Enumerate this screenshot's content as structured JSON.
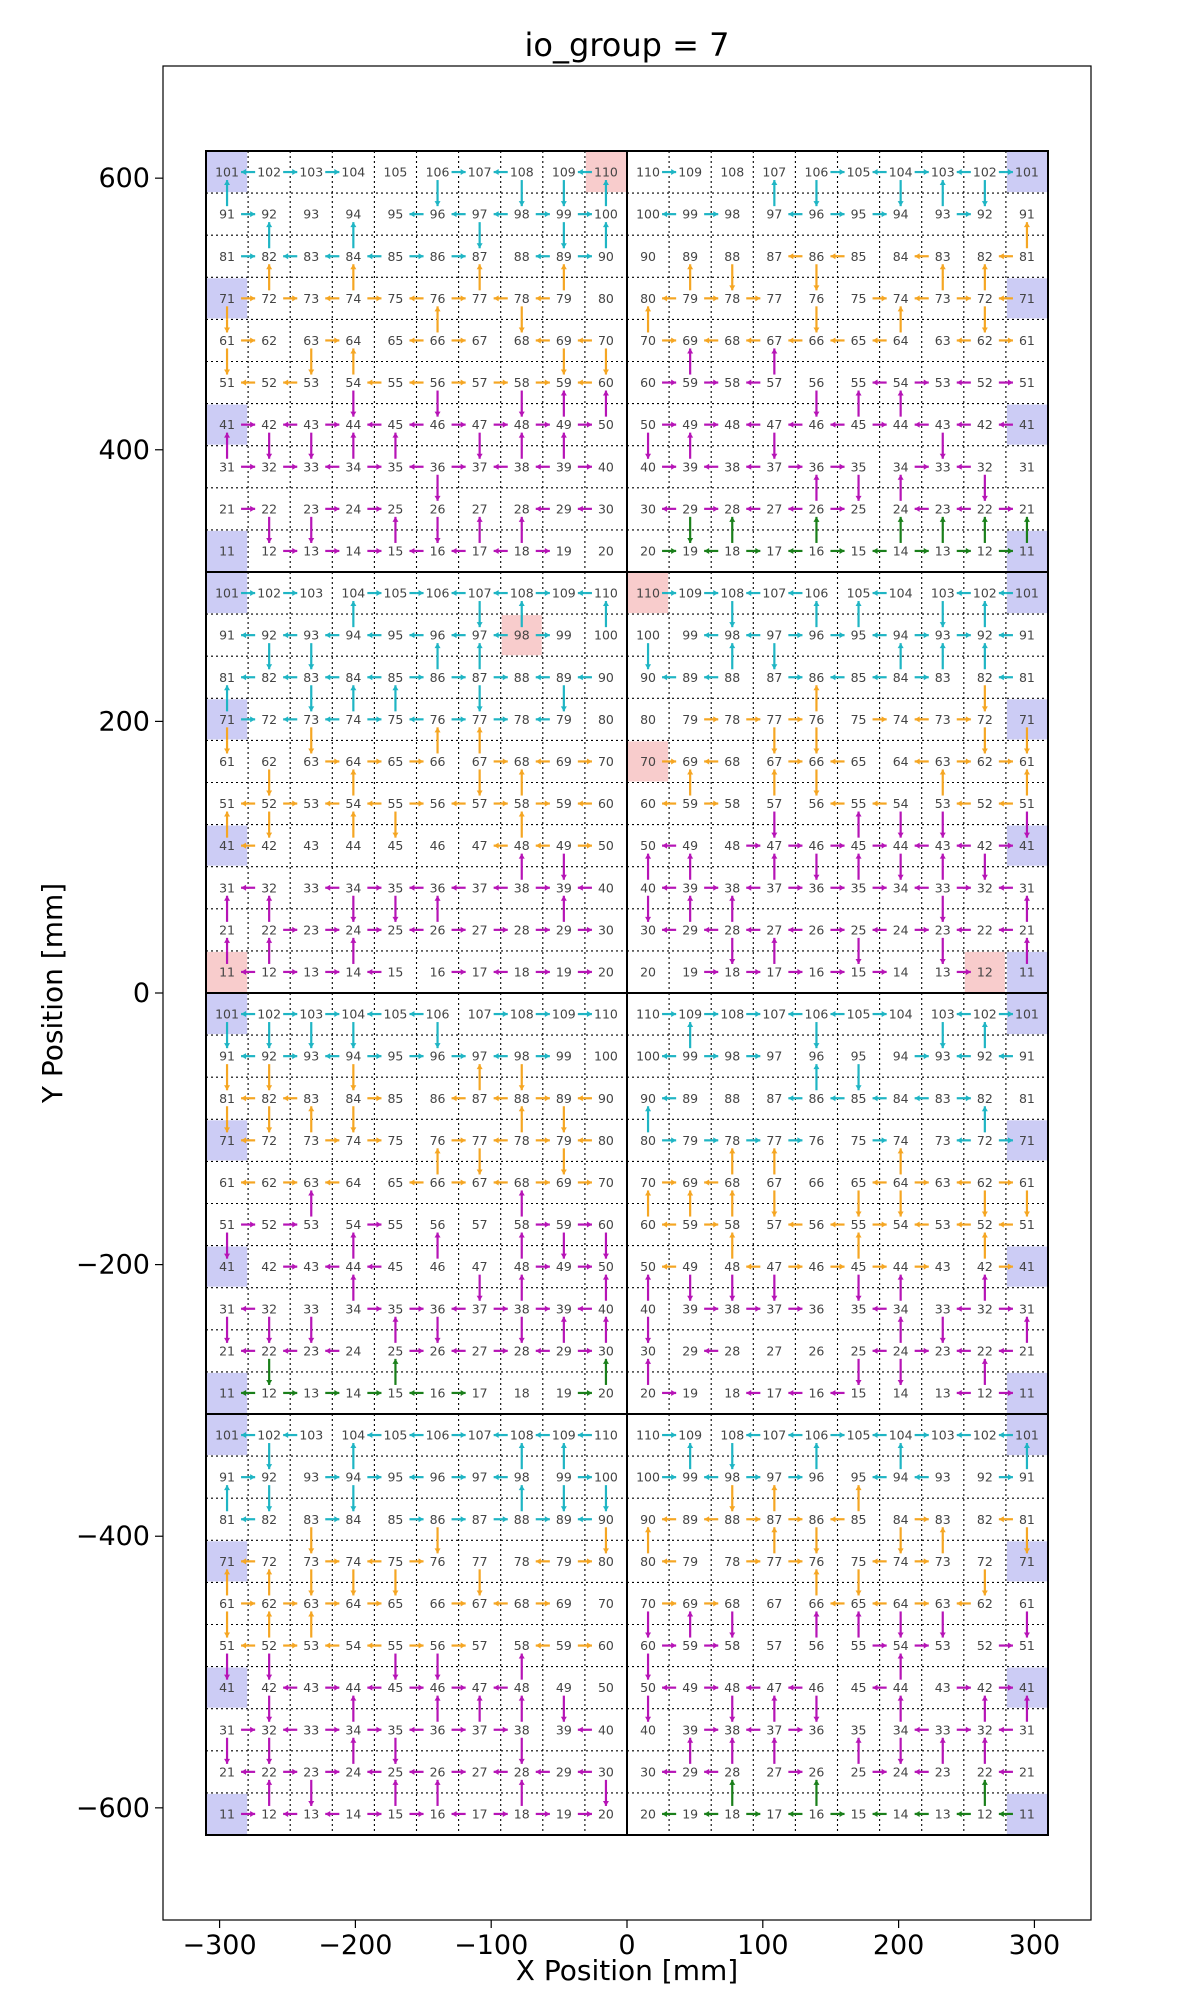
{
  "chart_data": {
    "type": "scatter",
    "title": "io_group = 7",
    "xlabel": "X Position [mm]",
    "ylabel": "Y Position [mm]",
    "xlim": [
      -340,
      340
    ],
    "ylim": [
      -690,
      690
    ],
    "xticks": [
      -300,
      -200,
      -100,
      0,
      100,
      200,
      300
    ],
    "xtick_labels": [
      "−300",
      "−200",
      "−100",
      "0",
      "100",
      "200",
      "300"
    ],
    "yticks": [
      -600,
      -400,
      -200,
      0,
      200,
      400,
      600
    ],
    "ytick_labels": [
      "−600",
      "−400",
      "−200",
      "0",
      "200",
      "400",
      "600"
    ],
    "tile_x_range": [
      -310,
      310
    ],
    "tile_y_range": [
      -620,
      620
    ],
    "grid": "dotted",
    "highlighted_chips": [
      {
        "tile": 1,
        "chip": 110
      },
      {
        "tile": 3,
        "chip": 98
      },
      {
        "tile": 3,
        "chip": 11
      },
      {
        "tile": 4,
        "chip": 12
      },
      {
        "tile": 4,
        "chip": 70
      },
      {
        "tile": 4,
        "chip": 110
      }
    ],
    "colors": {
      "root_chip": "#ccccf5",
      "highlight_chip": "#f8cccc",
      "arrow_green": "#1a7f1a",
      "arrow_cyan": "#1fb5c4",
      "arrow_orange": "#f5a623",
      "arrow_magenta": "#b614b6",
      "frame": "#000000",
      "label": "#444444"
    },
    "tiles": [
      {
        "id": 1,
        "x0": -310,
        "x1": 0,
        "y0": 310,
        "y1": 620,
        "layout": "left"
      },
      {
        "id": 2,
        "x0": 0,
        "x1": 310,
        "y0": 310,
        "y1": 620,
        "layout": "right"
      },
      {
        "id": 3,
        "x0": -310,
        "x1": 0,
        "y0": 0,
        "y1": 310,
        "layout": "left"
      },
      {
        "id": 4,
        "x0": 0,
        "x1": 310,
        "y0": 0,
        "y1": 310,
        "layout": "right"
      },
      {
        "id": 5,
        "x0": -310,
        "x1": 0,
        "y0": -310,
        "y1": 0,
        "layout": "left"
      },
      {
        "id": 6,
        "x0": 0,
        "x1": 310,
        "y0": -310,
        "y1": 0,
        "layout": "right"
      },
      {
        "id": 7,
        "x0": -310,
        "x1": 0,
        "y0": -620,
        "y1": -310,
        "layout": "left"
      },
      {
        "id": 8,
        "x0": 0,
        "x1": 310,
        "y0": -620,
        "y1": -310,
        "layout": "right"
      }
    ],
    "root_chips": [
      11,
      41,
      71,
      101
    ]
  }
}
